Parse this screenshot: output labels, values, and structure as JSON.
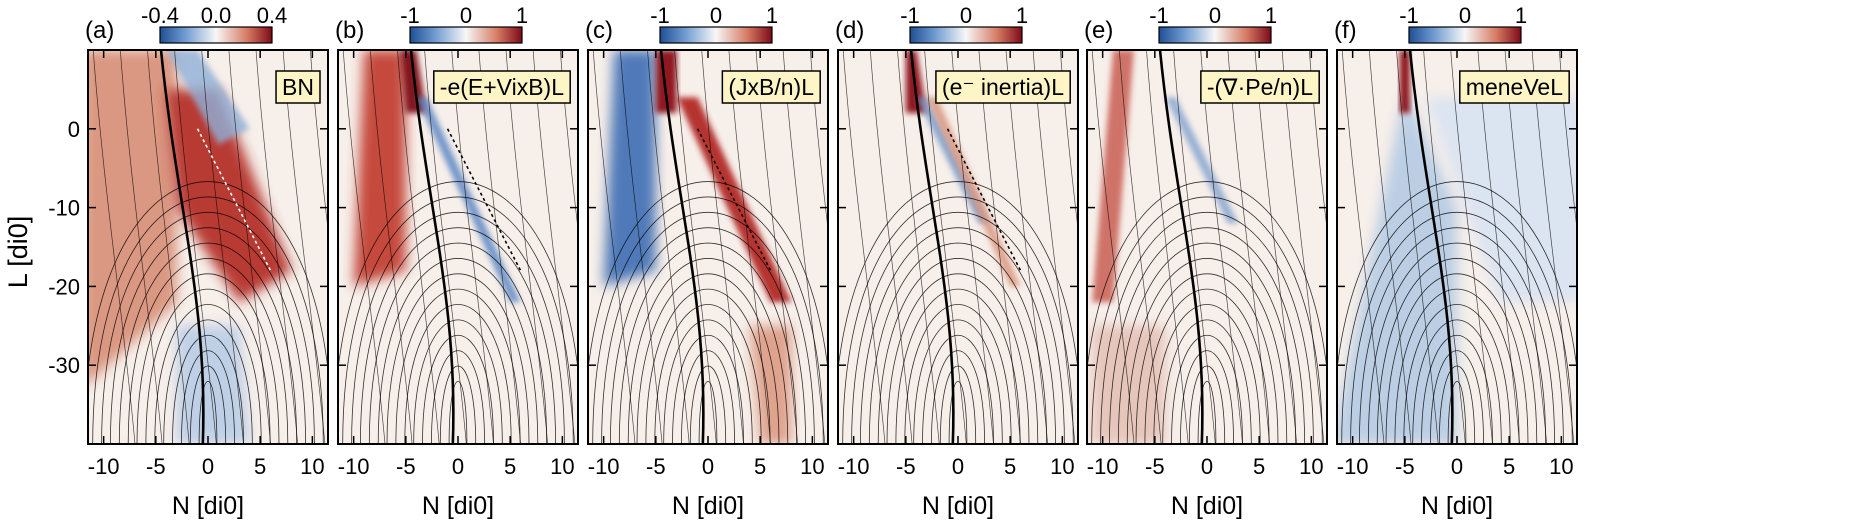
{
  "figure": {
    "ylabel": "L [di0]",
    "xlabel": "N [di0]",
    "xticks": [
      "-10",
      "-5",
      "0",
      "5",
      "10"
    ],
    "yticks": [
      "0",
      "-10",
      "-20",
      "-30"
    ]
  },
  "chart_data": [
    {
      "type": "heatmap",
      "panel": "(a)",
      "quantity": "BN",
      "colorbar": {
        "ticks": [
          "-0.4",
          "0.0",
          "0.4"
        ],
        "range": [
          -0.4,
          0.4
        ]
      },
      "xlim": [
        -11.5,
        11.5
      ],
      "ylim": [
        -40,
        10
      ],
      "colors": [
        "#2c5a9c",
        "#ffffff",
        "#8b0a16"
      ]
    },
    {
      "type": "heatmap",
      "panel": "(b)",
      "quantity": "-e(E+VixB)L",
      "colorbar": {
        "ticks": [
          "-1",
          "0",
          "1"
        ],
        "range": [
          -1,
          1
        ]
      },
      "xlim": [
        -11.5,
        11.5
      ],
      "ylim": [
        -40,
        10
      ]
    },
    {
      "type": "heatmap",
      "panel": "(c)",
      "quantity": "(JxB/n)L",
      "colorbar": {
        "ticks": [
          "-1",
          "0",
          "1"
        ],
        "range": [
          -1,
          1
        ]
      },
      "xlim": [
        -11.5,
        11.5
      ],
      "ylim": [
        -40,
        10
      ]
    },
    {
      "type": "heatmap",
      "panel": "(d)",
      "quantity": "(e⁻ inertia)L",
      "colorbar": {
        "ticks": [
          "-1",
          "0",
          "1"
        ],
        "range": [
          -1,
          1
        ]
      },
      "xlim": [
        -11.5,
        11.5
      ],
      "ylim": [
        -40,
        10
      ]
    },
    {
      "type": "heatmap",
      "panel": "(e)",
      "quantity": "-(∇·Pe/n)L",
      "colorbar": {
        "ticks": [
          "-1",
          "0",
          "1"
        ],
        "range": [
          -1,
          1
        ]
      },
      "xlim": [
        -11.5,
        11.5
      ],
      "ylim": [
        -40,
        10
      ]
    },
    {
      "type": "heatmap",
      "panel": "(f)",
      "quantity": "meneVeL",
      "colorbar": {
        "ticks": [
          "-1",
          "0",
          "1"
        ],
        "range": [
          -1,
          1
        ]
      },
      "xlim": [
        -11.5,
        11.5
      ],
      "ylim": [
        -40,
        10
      ]
    }
  ]
}
